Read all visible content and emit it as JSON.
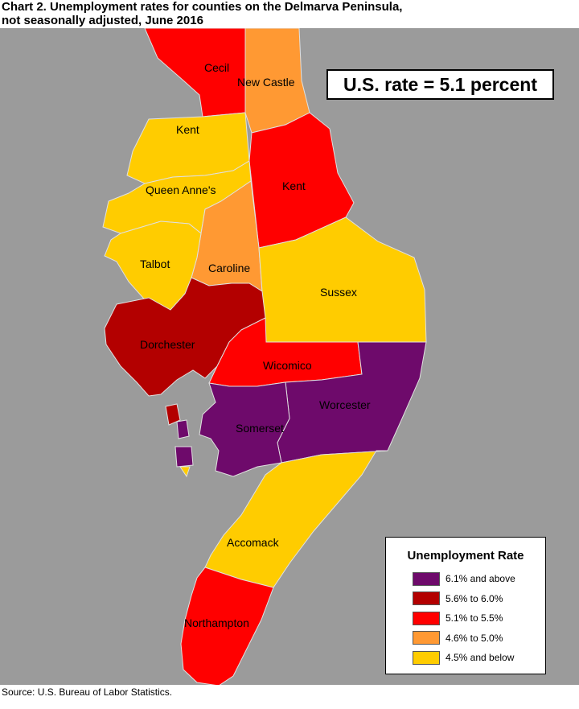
{
  "title_line1": "Chart 2. Unemployment rates for counties on the Delmarva Peninsula,",
  "title_line2": "not seasonally adjusted, June 2016",
  "us_rate": "U.S. rate = 5.1 percent",
  "source": "Source: U.S. Bureau of Labor Statistics.",
  "colors": {
    "water": "#9b9b9b",
    "c61": "#6e0a6b",
    "c56": "#b30000",
    "c51": "#ff0000",
    "c46": "#ff9933",
    "c45": "#ffcc00"
  },
  "legend": {
    "title": "Unemployment Rate",
    "items": [
      {
        "label": "6.1% and above",
        "color": "#6e0a6b"
      },
      {
        "label": "5.6% to 6.0%",
        "color": "#b30000"
      },
      {
        "label": "5.1% to 5.5%",
        "color": "#ff0000"
      },
      {
        "label": "4.6% to 5.0%",
        "color": "#ff9933"
      },
      {
        "label": "4.5% and below",
        "color": "#ffcc00"
      }
    ]
  },
  "counties": [
    {
      "name": "Cecil",
      "category": "5.1% to 5.5%"
    },
    {
      "name": "New Castle",
      "category": "4.6% to 5.0%"
    },
    {
      "name": "Kent",
      "category": "4.5% and below"
    },
    {
      "name": "Kent",
      "category": "5.1% to 5.5%"
    },
    {
      "name": "Queen Anne's",
      "category": "4.5% and below"
    },
    {
      "name": "Caroline",
      "category": "4.6% to 5.0%"
    },
    {
      "name": "Talbot",
      "category": "4.5% and below"
    },
    {
      "name": "Sussex",
      "category": "4.5% and below"
    },
    {
      "name": "Dorchester",
      "category": "5.6% to 6.0%"
    },
    {
      "name": "Wicomico",
      "category": "5.1% to 5.5%"
    },
    {
      "name": "Worcester",
      "category": "6.1% and above"
    },
    {
      "name": "Somerset",
      "category": "6.1% and above"
    },
    {
      "name": "Accomack",
      "category": "4.5% and below"
    },
    {
      "name": "Northampton",
      "category": "5.1% to 5.5%"
    }
  ]
}
